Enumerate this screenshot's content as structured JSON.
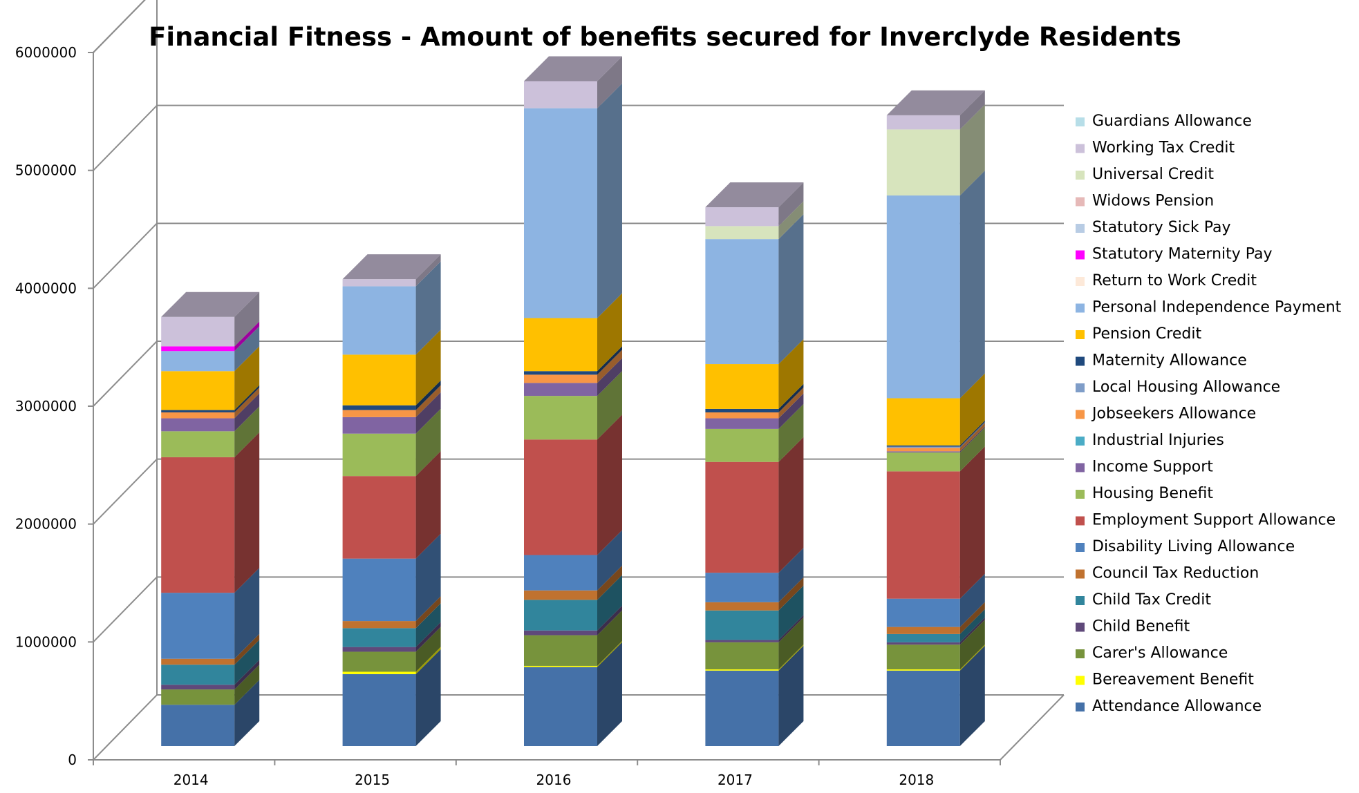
{
  "chart_data": {
    "type": "bar",
    "stacked": true,
    "three_d": true,
    "title": "Financial Fitness - Amount of benefits secured for Inverclyde Residents",
    "xlabel": "",
    "ylabel": "",
    "ylim": [
      0,
      6000000
    ],
    "yticks": [
      "0",
      "1000000",
      "2000000",
      "3000000",
      "4000000",
      "5000000",
      "6000000"
    ],
    "grid": true,
    "legend_position": "right",
    "categories": [
      "2014",
      "2015",
      "2016",
      "2017",
      "2018"
    ],
    "series": [
      {
        "name": "Attendance Allowance",
        "color": "#4571A8",
        "values": [
          350000,
          610000,
          670000,
          640000,
          640000
        ]
      },
      {
        "name": "Bereavement Benefit",
        "color": "#FFFF00",
        "values": [
          0,
          20000,
          10000,
          10000,
          10000
        ]
      },
      {
        "name": "Carer's Allowance",
        "color": "#77933C",
        "values": [
          130000,
          170000,
          260000,
          230000,
          210000
        ]
      },
      {
        "name": "Child Benefit",
        "color": "#5F497A",
        "values": [
          40000,
          40000,
          40000,
          20000,
          20000
        ]
      },
      {
        "name": "Child Tax Credit",
        "color": "#31859C",
        "values": [
          170000,
          160000,
          260000,
          250000,
          70000
        ]
      },
      {
        "name": "Council Tax Reduction",
        "color": "#C0722F",
        "values": [
          50000,
          60000,
          80000,
          70000,
          60000
        ]
      },
      {
        "name": "Disability Living Allowance",
        "color": "#4F81BD",
        "values": [
          560000,
          530000,
          300000,
          250000,
          240000
        ]
      },
      {
        "name": "Employment Support Allowance",
        "color": "#C0504D",
        "values": [
          1150000,
          700000,
          980000,
          940000,
          1080000
        ]
      },
      {
        "name": "Housing Benefit",
        "color": "#9BBB59",
        "values": [
          220000,
          360000,
          370000,
          280000,
          160000
        ]
      },
      {
        "name": "Income Support",
        "color": "#8064A2",
        "values": [
          110000,
          140000,
          110000,
          90000,
          10000
        ]
      },
      {
        "name": "Industrial Injuries",
        "color": "#4BACC6",
        "values": [
          0,
          0,
          0,
          0,
          0
        ]
      },
      {
        "name": "Jobseekers Allowance",
        "color": "#F79646",
        "values": [
          50000,
          60000,
          70000,
          50000,
          30000
        ]
      },
      {
        "name": "Local Housing Allowance",
        "color": "#7F9DC8",
        "values": [
          0,
          0,
          0,
          0,
          10000
        ]
      },
      {
        "name": "Maternity Allowance",
        "color": "#1F497D",
        "values": [
          20000,
          40000,
          30000,
          30000,
          10000
        ]
      },
      {
        "name": "Pension Credit",
        "color": "#FFC000",
        "values": [
          330000,
          430000,
          450000,
          380000,
          400000
        ]
      },
      {
        "name": "Personal Independence Payment",
        "color": "#8DB4E2",
        "values": [
          170000,
          580000,
          1780000,
          1060000,
          1720000
        ]
      },
      {
        "name": "Return to Work Credit",
        "color": "#FDE9D9",
        "values": [
          0,
          0,
          0,
          0,
          0
        ]
      },
      {
        "name": "Statutory Maternity Pay",
        "color": "#FF00FF",
        "values": [
          40000,
          0,
          0,
          0,
          0
        ]
      },
      {
        "name": "Statutory Sick Pay",
        "color": "#B8CCE4",
        "values": [
          0,
          0,
          0,
          0,
          0
        ]
      },
      {
        "name": "Widows Pension",
        "color": "#E6B9B8",
        "values": [
          0,
          0,
          0,
          0,
          0
        ]
      },
      {
        "name": "Universal Credit",
        "color": "#D7E4BD",
        "values": [
          0,
          0,
          0,
          110000,
          560000
        ]
      },
      {
        "name": "Working Tax Credit",
        "color": "#CCC1DA",
        "values": [
          250000,
          60000,
          230000,
          160000,
          120000
        ]
      },
      {
        "name": "Guardians Allowance",
        "color": "#B7DEE8",
        "values": [
          0,
          0,
          0,
          0,
          0
        ]
      }
    ]
  }
}
